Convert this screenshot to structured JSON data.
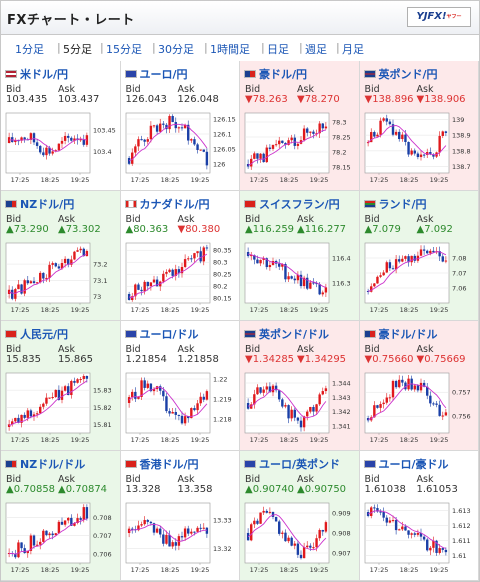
{
  "header": {
    "title": "FXチャート・レート",
    "logo_text": "YJFX!",
    "logo_sub": "ヤフー"
  },
  "tabs": [
    {
      "label": "1分足",
      "active": false
    },
    {
      "label": "5分足",
      "active": true
    },
    {
      "label": "15分足",
      "active": false
    },
    {
      "label": "30分足",
      "active": false
    },
    {
      "label": "1時間足",
      "active": false
    },
    {
      "label": "日足",
      "active": false
    },
    {
      "label": "週足",
      "active": false
    },
    {
      "label": "月足",
      "active": false
    }
  ],
  "labels": {
    "bid": "Bid",
    "ask": "Ask"
  },
  "colors": {
    "up_bg": "#eaf7e8",
    "down_bg": "#fde9ea",
    "up_text": "#2d8a2d",
    "down_text": "#d33",
    "candle_up": "#e0191c",
    "candle_down": "#1a3fa6",
    "ma_line": "#cc33cc"
  },
  "pairs": [
    {
      "name": "米ドル/円",
      "trend": "flat",
      "bid": "103.435",
      "ask": "103.437",
      "bid_dir": "",
      "ask_dir": "",
      "flag": "us",
      "ticks": [
        "103.45",
        "103.4"
      ],
      "x_labels": [
        "17:25",
        "18:25",
        "19:25"
      ],
      "ylim": [
        103.35,
        103.49
      ],
      "shape": "flat"
    },
    {
      "name": "ユーロ/円",
      "trend": "flat",
      "bid": "126.043",
      "ask": "126.048",
      "bid_dir": "",
      "ask_dir": "",
      "flag": "eu",
      "ticks": [
        "126.15",
        "126.1",
        "126.05",
        "126"
      ],
      "x_labels": [
        "17:25",
        "18:25",
        "19:25"
      ],
      "ylim": [
        125.97,
        126.17
      ],
      "shape": "rise-fall"
    },
    {
      "name": "豪ドル/円",
      "trend": "down",
      "bid": "▼78.263",
      "ask": "▼78.270",
      "bid_dir": "down",
      "ask_dir": "down",
      "flag": "au",
      "ticks": [
        "78.3",
        "78.25",
        "78.2",
        "78.15"
      ],
      "x_labels": [
        "17:25",
        "18:25",
        "19:25"
      ],
      "ylim": [
        78.13,
        78.33
      ],
      "shape": "rise"
    },
    {
      "name": "英ポンド/円",
      "trend": "down",
      "bid": "▼138.896",
      "ask": "▼138.906",
      "bid_dir": "down",
      "ask_dir": "down",
      "flag": "gb",
      "ticks": [
        "139",
        "138.9",
        "138.8",
        "138.7"
      ],
      "x_labels": [
        "17:25",
        "18:25",
        "19:25"
      ],
      "ylim": [
        138.66,
        139.04
      ],
      "shape": "wave"
    },
    {
      "name": "NZドル/円",
      "trend": "up",
      "bid": "▲73.290",
      "ask": "▲73.302",
      "bid_dir": "up",
      "ask_dir": "up",
      "flag": "nz",
      "ticks": [
        "73.2",
        "73.1",
        "73"
      ],
      "x_labels": [
        "17:25",
        "18:25",
        "19:25"
      ],
      "ylim": [
        72.96,
        73.33
      ],
      "shape": "rise"
    },
    {
      "name": "カナダドル/円",
      "trend": "flat",
      "bid": "▲80.363",
      "ask": "▼80.380",
      "bid_dir": "up",
      "ask_dir": "down",
      "flag": "ca",
      "ticks": [
        "80.35",
        "80.3",
        "80.25",
        "80.2",
        "80.15"
      ],
      "x_labels": [
        "17:25",
        "18:25",
        "19:25"
      ],
      "ylim": [
        80.13,
        80.38
      ],
      "shape": "rise"
    },
    {
      "name": "スイスフラン/円",
      "trend": "up",
      "bid": "▲116.259",
      "ask": "▲116.277",
      "bid_dir": "up",
      "ask_dir": "up",
      "flag": "ch",
      "ticks": [
        "116.4",
        "116.3"
      ],
      "x_labels": [
        "17:25",
        "18:25",
        "19:25"
      ],
      "ylim": [
        116.22,
        116.46
      ],
      "shape": "fall"
    },
    {
      "name": "ランド/円",
      "trend": "up",
      "bid": "▲7.079",
      "ask": "▲7.092",
      "bid_dir": "up",
      "ask_dir": "up",
      "flag": "za",
      "ticks": [
        "7.08",
        "7.07",
        "7.06"
      ],
      "x_labels": [
        "17:25",
        "18:25",
        "19:25"
      ],
      "ylim": [
        7.05,
        7.09
      ],
      "shape": "rise-flat"
    },
    {
      "name": "人民元/円",
      "trend": "up",
      "bid": "15.835",
      "ask": "15.865",
      "bid_dir": "",
      "ask_dir": "",
      "flag": "cn",
      "ticks": [
        "15.83",
        "15.82",
        "15.81"
      ],
      "x_labels": [
        "17:25",
        "18:25",
        "19:25"
      ],
      "ylim": [
        15.805,
        15.84
      ],
      "shape": "steady-rise"
    },
    {
      "name": "ユーロ/ドル",
      "trend": "flat",
      "bid": "1.21854",
      "ask": "1.21858",
      "bid_dir": "",
      "ask_dir": "",
      "flag": "eu",
      "ticks": [
        "1.22",
        "1.219",
        "1.218"
      ],
      "x_labels": [
        "17:25",
        "18:25",
        "19:25"
      ],
      "ylim": [
        1.2173,
        1.2203
      ],
      "shape": "wave"
    },
    {
      "name": "英ポンド/ドル",
      "trend": "down",
      "bid": "▼1.34285",
      "ask": "▼1.34295",
      "bid_dir": "down",
      "ask_dir": "down",
      "flag": "gb",
      "ticks": [
        "1.344",
        "1.343",
        "1.342",
        "1.341"
      ],
      "x_labels": [
        "17:25",
        "18:25",
        "19:25"
      ],
      "ylim": [
        1.3405,
        1.3447
      ],
      "shape": "wave"
    },
    {
      "name": "豪ドル/ドル",
      "trend": "down",
      "bid": "▼0.75660",
      "ask": "▼0.75669",
      "bid_dir": "down",
      "ask_dir": "down",
      "flag": "au",
      "ticks": [
        "0.757",
        "0.756"
      ],
      "x_labels": [
        "17:25",
        "18:25",
        "19:25"
      ],
      "ylim": [
        0.7553,
        0.7578
      ],
      "shape": "rise-fall"
    },
    {
      "name": "NZドル/ドル",
      "trend": "up",
      "bid": "▲0.70858",
      "ask": "▲0.70874",
      "bid_dir": "up",
      "ask_dir": "up",
      "flag": "nz",
      "ticks": [
        "0.708",
        "0.707",
        "0.706"
      ],
      "x_labels": [
        "17:25",
        "18:25",
        "19:25"
      ],
      "ylim": [
        0.7055,
        0.7088
      ],
      "shape": "rise"
    },
    {
      "name": "香港ドル/円",
      "trend": "flat",
      "bid": "13.328",
      "ask": "13.358",
      "bid_dir": "",
      "ask_dir": "",
      "flag": "hk",
      "ticks": [
        "13.33",
        "13.32"
      ],
      "x_labels": [
        "17:25",
        "18:25",
        "19:25"
      ],
      "ylim": [
        13.315,
        13.336
      ],
      "shape": "flat"
    },
    {
      "name": "ユーロ/英ポンド",
      "trend": "up",
      "bid": "▲0.90740",
      "ask": "▲0.90750",
      "bid_dir": "up",
      "ask_dir": "up",
      "flag": "eu",
      "ticks": [
        "0.909",
        "0.908",
        "0.907"
      ],
      "x_labels": [
        "17:25",
        "18:25",
        "19:25"
      ],
      "ylim": [
        0.9065,
        0.9095
      ],
      "shape": "wave"
    },
    {
      "name": "ユーロ/豪ドル",
      "trend": "flat",
      "bid": "1.61038",
      "ask": "1.61053",
      "bid_dir": "",
      "ask_dir": "",
      "flag": "eu",
      "ticks": [
        "1.613",
        "1.612",
        "1.611",
        "1.61"
      ],
      "x_labels": [
        "17:25",
        "18:25",
        "19:25"
      ],
      "ylim": [
        1.6095,
        1.6135
      ],
      "shape": "fall"
    }
  ]
}
